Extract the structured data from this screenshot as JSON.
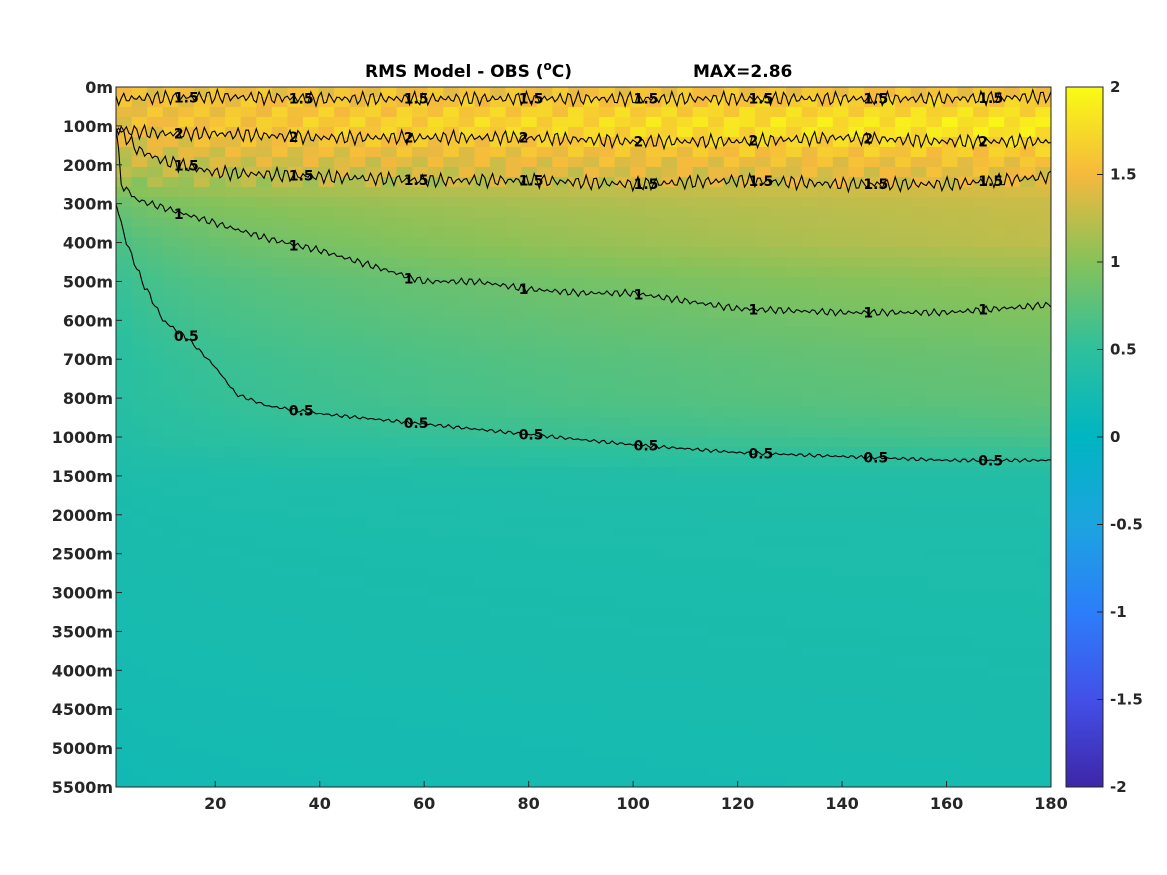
{
  "chart_data": {
    "type": "heatmap",
    "title": "RMS Model - OBS (",
    "title_sup": "o",
    "title_after": "C)",
    "max_label": "MAX=2.86",
    "xlabel": "",
    "ylabel": "",
    "xlim": [
      1,
      180
    ],
    "x_ticks": [
      20,
      40,
      60,
      80,
      100,
      120,
      140,
      160,
      180
    ],
    "y_tick_labels": [
      "0m",
      "100m",
      "200m",
      "300m",
      "400m",
      "500m",
      "600m",
      "700m",
      "800m",
      "1000m",
      "1500m",
      "2000m",
      "2500m",
      "3000m",
      "3500m",
      "4000m",
      "4500m",
      "5000m",
      "5500m"
    ],
    "colorbar": {
      "range": [
        -2,
        2
      ],
      "ticks": [
        "2",
        "1.5",
        "1",
        "0.5",
        "0",
        "-0.5",
        "-1",
        "-1.5",
        "-2"
      ],
      "colormap": "parula"
    },
    "depth_profile": {
      "levels": [
        "0m",
        "100m",
        "200m",
        "300m",
        "400m",
        "500m",
        "600m",
        "700m",
        "800m",
        "1000m",
        "1500m",
        "2000m",
        "2500m",
        "3000m",
        "3500m",
        "4000m",
        "4500m",
        "5000m",
        "5500m"
      ],
      "rms_at_x1": [
        1.5,
        1.4,
        1.2,
        0.8,
        0.6,
        0.5,
        0.45,
        0.4,
        0.38,
        0.35,
        0.3,
        0.28,
        0.27,
        0.26,
        0.25,
        0.24,
        0.22,
        0.2,
        0.18
      ],
      "rms_at_x180": [
        1.5,
        1.9,
        1.5,
        1.3,
        1.25,
        1.05,
        0.95,
        0.85,
        0.8,
        0.65,
        0.38,
        0.34,
        0.32,
        0.31,
        0.3,
        0.29,
        0.28,
        0.27,
        0.26
      ]
    },
    "contours": [
      {
        "level": "0.5",
        "label": "0.5",
        "x": [
          1,
          3,
          6,
          10,
          15,
          20,
          24,
          30,
          40,
          55,
          70,
          85,
          100,
          120,
          140,
          160,
          180
        ],
        "depth_level_index": [
          3,
          4,
          5,
          6,
          6.5,
          7.2,
          7.9,
          8.2,
          8.4,
          8.6,
          8.8,
          9.0,
          9.2,
          9.4,
          9.5,
          9.6,
          9.6
        ]
      },
      {
        "level": "1",
        "label": "1",
        "x": [
          1,
          2,
          5,
          10,
          20,
          30,
          40,
          50,
          60,
          70,
          80,
          90,
          100,
          120,
          140,
          160,
          180
        ],
        "depth_level_index": [
          1,
          2.5,
          2.9,
          3.1,
          3.5,
          3.9,
          4.2,
          4.6,
          5.0,
          5.0,
          5.2,
          5.3,
          5.3,
          5.7,
          5.8,
          5.8,
          5.6
        ]
      },
      {
        "level": "1.5",
        "label": "1.5",
        "x": [
          1,
          5,
          10,
          20,
          40,
          60,
          80,
          100,
          120,
          140,
          160,
          180
        ],
        "depth_level_index": [
          1.0,
          1.6,
          1.9,
          2.2,
          2.3,
          2.4,
          2.4,
          2.5,
          2.4,
          2.5,
          2.5,
          2.3
        ]
      },
      {
        "level": "2",
        "label": "2",
        "x": [
          1,
          10,
          20,
          40,
          60,
          80,
          100,
          120,
          140,
          160,
          180
        ],
        "depth_level_index": [
          1.1,
          1.2,
          1.2,
          1.3,
          1.3,
          1.3,
          1.4,
          1.4,
          1.3,
          1.4,
          1.4
        ]
      },
      {
        "level": "1.5",
        "label": "1.5",
        "x": [
          1,
          20,
          40,
          60,
          80,
          100,
          120,
          140,
          160,
          180
        ],
        "depth_level_index": [
          0.3,
          0.25,
          0.3,
          0.3,
          0.3,
          0.3,
          0.3,
          0.3,
          0.3,
          0.25
        ]
      }
    ]
  }
}
